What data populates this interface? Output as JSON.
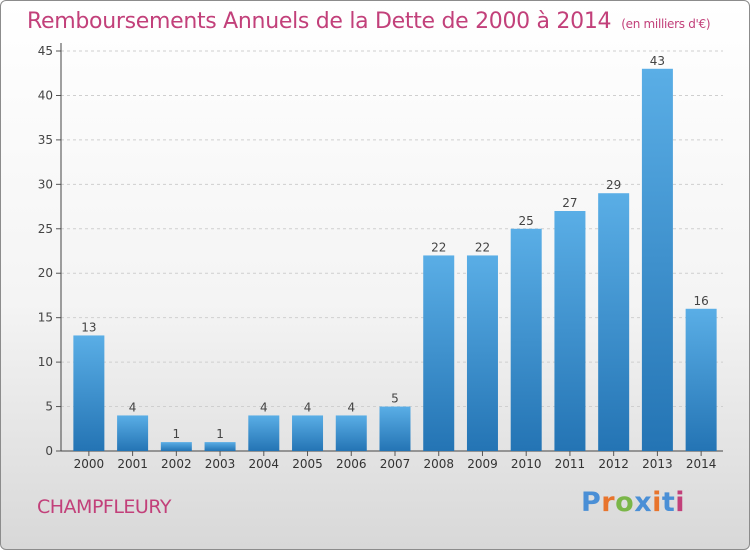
{
  "header": {
    "title": "Remboursements Annuels de la Dette de 2000 à 2014",
    "unit": "(en milliers d'€)"
  },
  "footer": {
    "commune": "CHAMPFLEURY",
    "logo": "Proxiti",
    "logo_colors": [
      "#4a8fd6",
      "#e8742c",
      "#7ab648",
      "#4a8fd6",
      "#e8742c",
      "#4a8fd6",
      "#c2407a"
    ]
  },
  "colors": {
    "bar_top": "#5aaee6",
    "bar_bottom": "#2474b4",
    "text": "#c2407a"
  },
  "chart_data": {
    "type": "bar",
    "title": "Remboursements Annuels de la Dette de 2000 à 2014",
    "subtitle": "(en milliers d'€)",
    "categories": [
      "2000",
      "2001",
      "2002",
      "2003",
      "2004",
      "2005",
      "2006",
      "2007",
      "2008",
      "2009",
      "2010",
      "2011",
      "2012",
      "2013",
      "2014"
    ],
    "values": [
      13,
      4,
      1,
      1,
      4,
      4,
      4,
      5,
      22,
      22,
      25,
      27,
      29,
      43,
      16
    ],
    "ylim": [
      0,
      45
    ],
    "yticks": [
      0,
      5,
      10,
      15,
      20,
      25,
      30,
      35,
      40,
      45
    ],
    "grid": true,
    "data_labels": true
  }
}
